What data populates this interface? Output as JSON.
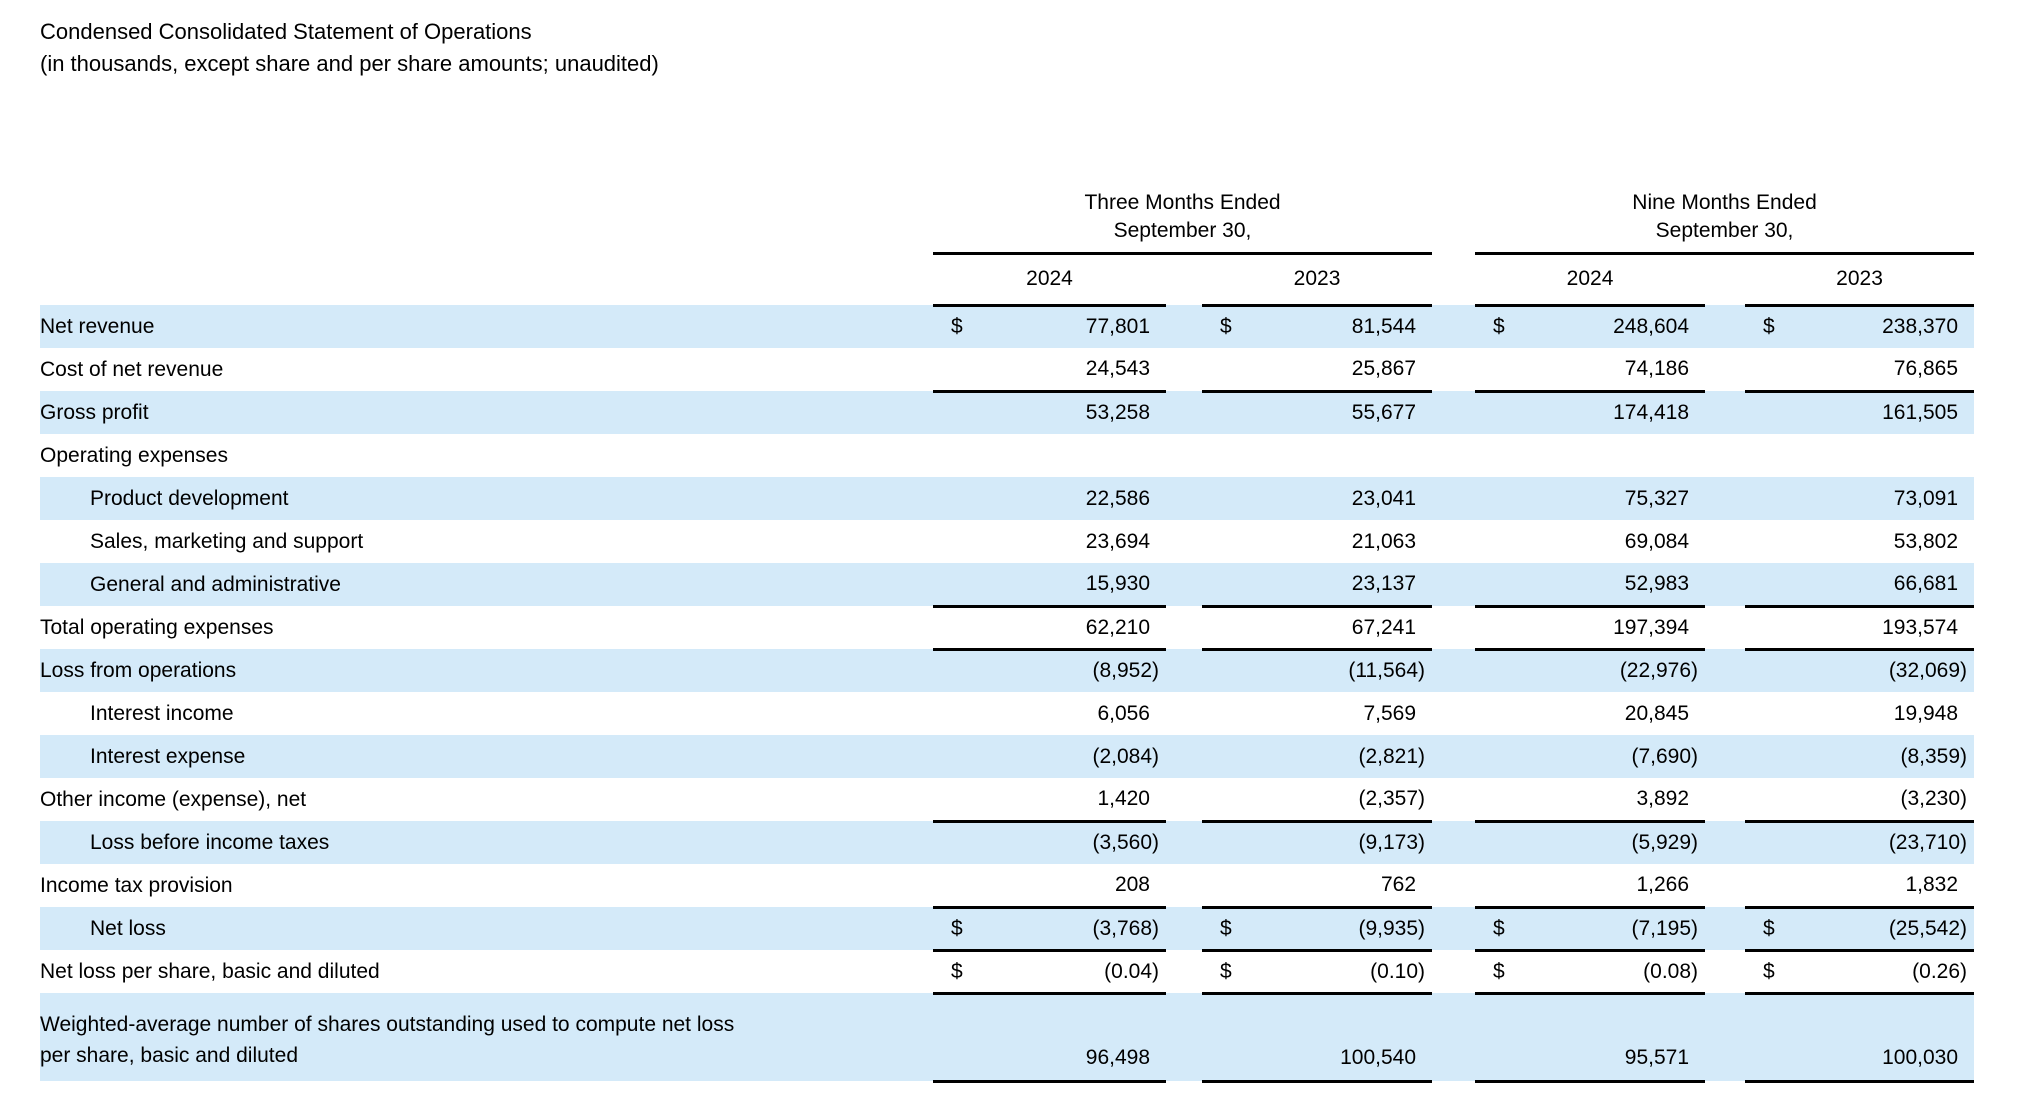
{
  "document": {
    "title": "Condensed Consolidated Statement of Operations",
    "subtitle": "(in thousands, except share and per share amounts; unaudited)"
  },
  "table": {
    "currency_symbol": "$",
    "groups": [
      {
        "label": "Three Months Ended",
        "sublabel": "September 30,",
        "years": [
          "2024",
          "2023"
        ]
      },
      {
        "label": "Nine Months Ended",
        "sublabel": "September 30,",
        "years": [
          "2024",
          "2023"
        ]
      }
    ],
    "colors": {
      "row_highlight": "#d4eaf9",
      "text": "#000000",
      "rule": "#000000"
    },
    "rows": [
      {
        "label": "Net revenue",
        "indent": 0,
        "shaded": true,
        "dollar": true,
        "border_bottom": false,
        "values": [
          "77,801",
          "81,544",
          "248,604",
          "238,370"
        ]
      },
      {
        "label": "Cost of net revenue",
        "indent": 0,
        "shaded": false,
        "dollar": false,
        "border_bottom": true,
        "values": [
          "24,543",
          "25,867",
          "74,186",
          "76,865"
        ]
      },
      {
        "label": "Gross profit",
        "indent": 0,
        "shaded": true,
        "dollar": false,
        "border_bottom": false,
        "values": [
          "53,258",
          "55,677",
          "174,418",
          "161,505"
        ]
      },
      {
        "label": "Operating expenses",
        "indent": 0,
        "shaded": false,
        "dollar": false,
        "border_bottom": false,
        "values": [
          "",
          "",
          "",
          ""
        ]
      },
      {
        "label": "Product development",
        "indent": 1,
        "shaded": true,
        "dollar": false,
        "border_bottom": false,
        "values": [
          "22,586",
          "23,041",
          "75,327",
          "73,091"
        ]
      },
      {
        "label": "Sales, marketing and support",
        "indent": 1,
        "shaded": false,
        "dollar": false,
        "border_bottom": false,
        "values": [
          "23,694",
          "21,063",
          "69,084",
          "53,802"
        ]
      },
      {
        "label": "General and administrative",
        "indent": 1,
        "shaded": true,
        "dollar": false,
        "border_bottom": true,
        "values": [
          "15,930",
          "23,137",
          "52,983",
          "66,681"
        ]
      },
      {
        "label": "Total operating expenses",
        "indent": 0,
        "shaded": false,
        "dollar": false,
        "border_bottom": true,
        "values": [
          "62,210",
          "67,241",
          "197,394",
          "193,574"
        ]
      },
      {
        "label": "Loss from operations",
        "indent": 0,
        "shaded": true,
        "dollar": false,
        "border_bottom": false,
        "values": [
          "(8,952)",
          "(11,564)",
          "(22,976)",
          "(32,069)"
        ]
      },
      {
        "label": "Interest income",
        "indent": 1,
        "shaded": false,
        "dollar": false,
        "border_bottom": false,
        "values": [
          "6,056",
          "7,569",
          "20,845",
          "19,948"
        ]
      },
      {
        "label": "Interest expense",
        "indent": 1,
        "shaded": true,
        "dollar": false,
        "border_bottom": false,
        "values": [
          "(2,084)",
          "(2,821)",
          "(7,690)",
          "(8,359)"
        ]
      },
      {
        "label": "Other income (expense), net",
        "indent": 0,
        "shaded": false,
        "dollar": false,
        "border_bottom": true,
        "values": [
          "1,420",
          "(2,357)",
          "3,892",
          "(3,230)"
        ]
      },
      {
        "label": "Loss before income taxes",
        "indent": 1,
        "shaded": true,
        "dollar": false,
        "border_bottom": false,
        "values": [
          "(3,560)",
          "(9,173)",
          "(5,929)",
          "(23,710)"
        ]
      },
      {
        "label": "Income tax provision",
        "indent": 0,
        "shaded": false,
        "dollar": false,
        "border_bottom": true,
        "values": [
          "208",
          "762",
          "1,266",
          "1,832"
        ]
      },
      {
        "label": "Net loss",
        "indent": 1,
        "shaded": true,
        "dollar": true,
        "border_bottom": true,
        "values": [
          "(3,768)",
          "(9,935)",
          "(7,195)",
          "(25,542)"
        ]
      },
      {
        "label": "Net loss per share, basic and diluted",
        "indent": 0,
        "shaded": false,
        "dollar": true,
        "border_bottom": true,
        "values": [
          "(0.04)",
          "(0.10)",
          "(0.08)",
          "(0.26)"
        ]
      },
      {
        "label": "Weighted-average number of shares outstanding used to compute net loss per share, basic and diluted",
        "label_lines": [
          "Weighted-average number of shares outstanding used to compute net loss",
          "per share, basic and diluted"
        ],
        "indent": 0,
        "shaded": true,
        "dollar": false,
        "border_bottom": true,
        "two_line": true,
        "values": [
          "96,498",
          "100,540",
          "95,571",
          "100,030"
        ]
      }
    ]
  }
}
